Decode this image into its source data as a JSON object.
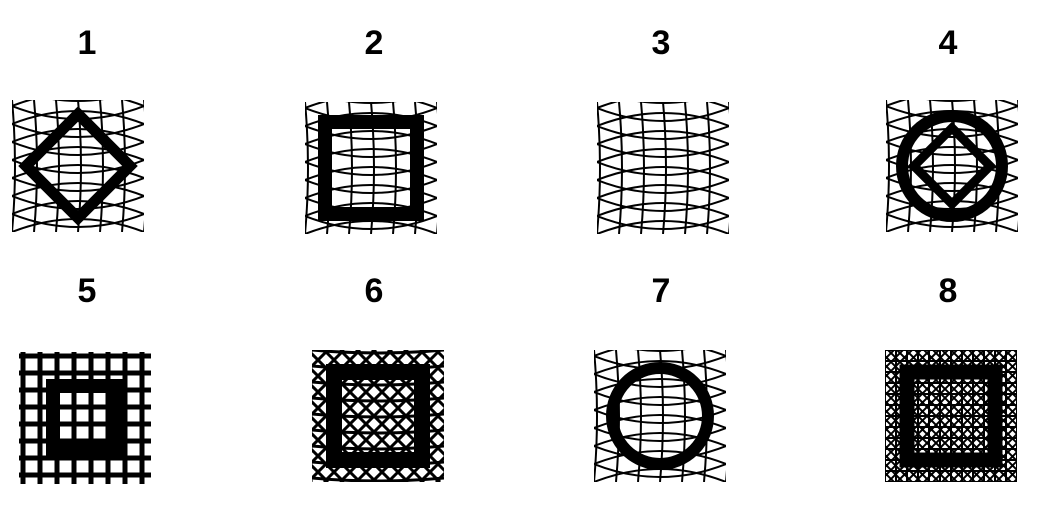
{
  "items": [
    {
      "label": "1",
      "icon": "diamond-on-curved-mesh-icon"
    },
    {
      "label": "2",
      "icon": "square-on-curved-mesh-icon"
    },
    {
      "label": "3",
      "icon": "curved-mesh-icon"
    },
    {
      "label": "4",
      "icon": "diamond-in-circle-on-curved-mesh-icon"
    },
    {
      "label": "5",
      "icon": "square-on-grid-icon"
    },
    {
      "label": "6",
      "icon": "square-on-diagonal-lattice-icon"
    },
    {
      "label": "7",
      "icon": "circle-on-curved-mesh-icon"
    },
    {
      "label": "8",
      "icon": "square-on-dense-lattice-icon"
    }
  ],
  "colors": {
    "ink": "#000000",
    "background": "#ffffff"
  }
}
